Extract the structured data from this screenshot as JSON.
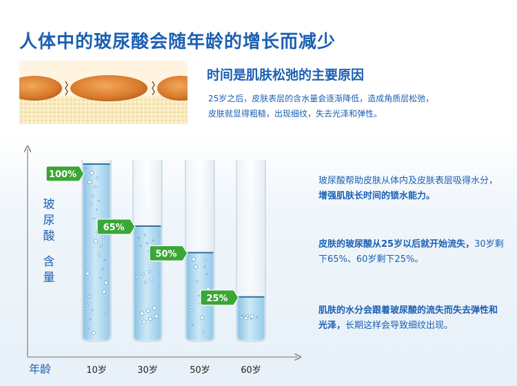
{
  "title": "人体中的玻尿酸会随年龄的增长而减少",
  "intro": {
    "heading": "时间是肌肤松弛的主要原因",
    "line1": "25岁之后，皮肤表层的含水量会逐渐降低，造成角质层松弛，",
    "line2": "皮肤就显得粗糙，出现细纹，失去光泽和弹性。"
  },
  "info": [
    {
      "pre": "玻尿酸帮助皮肤从体内及皮肤表层吸得水分，",
      "strong": "增强肌肤长时间的锁水能力。",
      "post": ""
    },
    {
      "pre": "",
      "strong": "皮肤的玻尿酸从25岁以后就开始流失，",
      "post": "30岁剩下65%、60岁剩下25%。"
    },
    {
      "pre": "",
      "strong": "肌肤的水分会跟着玻尿酸的流失而失去弹性和光泽，",
      "post": "长期这样会导致细纹出现。"
    }
  ],
  "chart_data": {
    "type": "bar",
    "categories": [
      "10岁",
      "30岁",
      "50岁",
      "60岁"
    ],
    "values": [
      100,
      65,
      50,
      25
    ],
    "labels": [
      "100%",
      "65%",
      "50%",
      "25%"
    ],
    "ylabel": "玻尿酸 含量",
    "xlabel": "年龄",
    "ylim": [
      0,
      100
    ],
    "colors": {
      "liquid": "#9fd0ea",
      "tag": "#3aa635",
      "axis": "#8a8a8a",
      "text": "#1b5fb3"
    }
  }
}
